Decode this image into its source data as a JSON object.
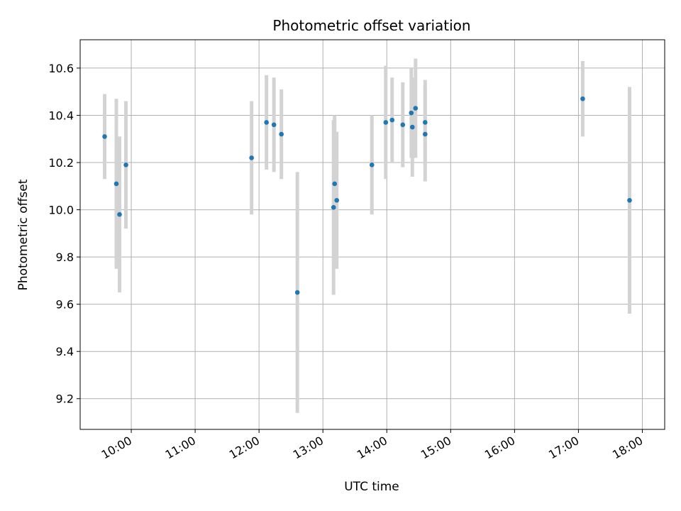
{
  "chart_data": {
    "type": "scatter",
    "title": "Photometric offset variation",
    "xlabel": "UTC time",
    "ylabel": "Photometric offset",
    "x_tick_labels": [
      "10:00",
      "11:00",
      "12:00",
      "13:00",
      "14:00",
      "15:00",
      "16:00",
      "17:00",
      "18:00"
    ],
    "x_ticks": [
      "10:00",
      "11:00",
      "12:00",
      "13:00",
      "14:00",
      "15:00",
      "16:00",
      "17:00",
      "18:00"
    ],
    "y_ticks": [
      9.2,
      9.4,
      9.6,
      9.8,
      10.0,
      10.2,
      10.4,
      10.6
    ],
    "y_tick_labels": [
      "9.2",
      "9.4",
      "9.6",
      "9.8",
      "10.0",
      "10.2",
      "10.4",
      "10.6"
    ],
    "xlim": [
      "09:12",
      "18:21"
    ],
    "ylim": [
      9.07,
      10.72
    ],
    "grid": true,
    "colors": {
      "point": "#1f77b4",
      "errorbar": "#d3d3d3",
      "grid": "#b0b0b0"
    },
    "points": [
      {
        "x": "09:35",
        "y": 10.31,
        "yerr": 0.18
      },
      {
        "x": "09:46",
        "y": 10.11,
        "yerr": 0.36
      },
      {
        "x": "09:49",
        "y": 9.98,
        "yerr": 0.33
      },
      {
        "x": "09:55",
        "y": 10.19,
        "yerr": 0.27
      },
      {
        "x": "11:53",
        "y": 10.22,
        "yerr": 0.24
      },
      {
        "x": "12:07",
        "y": 10.37,
        "yerr": 0.2
      },
      {
        "x": "12:14",
        "y": 10.36,
        "yerr": 0.2
      },
      {
        "x": "12:21",
        "y": 10.32,
        "yerr": 0.19
      },
      {
        "x": "12:36",
        "y": 9.65,
        "yerr": 0.51
      },
      {
        "x": "13:10",
        "y": 10.01,
        "yerr": 0.37
      },
      {
        "x": "13:11",
        "y": 10.11,
        "yerr": 0.29
      },
      {
        "x": "13:13",
        "y": 10.04,
        "yerr": 0.29
      },
      {
        "x": "13:46",
        "y": 10.19,
        "yerr": 0.21
      },
      {
        "x": "13:59",
        "y": 10.37,
        "yerr": 0.24
      },
      {
        "x": "14:05",
        "y": 10.38,
        "yerr": 0.18
      },
      {
        "x": "14:15",
        "y": 10.36,
        "yerr": 0.18
      },
      {
        "x": "14:23",
        "y": 10.41,
        "yerr": 0.19
      },
      {
        "x": "14:24",
        "y": 10.35,
        "yerr": 0.21
      },
      {
        "x": "14:27",
        "y": 10.43,
        "yerr": 0.21
      },
      {
        "x": "14:36",
        "y": 10.37,
        "yerr": 0.18
      },
      {
        "x": "14:36",
        "y": 10.32,
        "yerr": 0.2
      },
      {
        "x": "17:04",
        "y": 10.47,
        "yerr": 0.16
      },
      {
        "x": "17:48",
        "y": 10.04,
        "yerr": 0.48
      }
    ]
  }
}
